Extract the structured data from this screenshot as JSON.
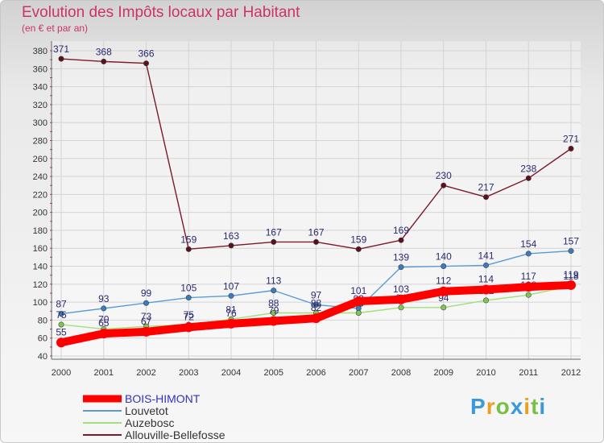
{
  "header": {
    "title": "Evolution des Impôts locaux par Habitant",
    "subtitle": "(en € et par an)"
  },
  "logo": {
    "text": "Proxiti",
    "colors": [
      "#3a9ad9",
      "#e8a020",
      "#77c043",
      "#3a9ad9",
      "#e8a020",
      "#77c043",
      "#3a9ad9"
    ]
  },
  "chart_data": {
    "type": "line",
    "title": "Evolution des Impôts locaux par Habitant",
    "subtitle": "(en € et par an)",
    "xlabel": "",
    "ylabel": "",
    "x": [
      "2000",
      "2001",
      "2002",
      "2003",
      "2004",
      "2005",
      "2006",
      "2007",
      "2008",
      "2009",
      "2010",
      "2011",
      "2012"
    ],
    "ylim": [
      40,
      380
    ],
    "yticks": [
      40,
      60,
      80,
      100,
      120,
      140,
      160,
      180,
      200,
      220,
      240,
      260,
      280,
      300,
      320,
      340,
      360,
      380
    ],
    "grid": true,
    "legend_position": "bottom-left",
    "series": [
      {
        "name": "Allouville-Bellefosse",
        "color": "#7a1a2a",
        "marker": "#5a1020",
        "text_color": "#2a2a70",
        "values": [
          371,
          368,
          366,
          159,
          163,
          167,
          167,
          159,
          169,
          230,
          217,
          238,
          271
        ],
        "labels": [
          "371",
          "368",
          "366",
          "159",
          "163",
          "167",
          "167",
          "159",
          "169",
          "230",
          "217",
          "238",
          "271"
        ]
      },
      {
        "name": "Louvetot",
        "color": "#5b9bd5",
        "marker": "#3a7cc0",
        "text_color": "#2a2a70",
        "values": [
          87,
          93,
          99,
          105,
          107,
          113,
          97,
          93,
          139,
          140,
          141,
          154,
          157
        ],
        "labels": [
          "87",
          "93",
          "99",
          "105",
          "107",
          "113",
          "97",
          "93",
          "139",
          "140",
          "141",
          "154",
          "157"
        ]
      },
      {
        "name": "Auzebosc",
        "color": "#9fe07a",
        "marker": "#7ec850",
        "text_color": "#2a2a70",
        "values": [
          75,
          70,
          73,
          75,
          81,
          88,
          88,
          88,
          94,
          94,
          102,
          108,
          118
        ],
        "labels": [
          "75",
          "70",
          "73",
          "75",
          "81",
          "88",
          "88",
          "88",
          "94",
          "94",
          "102",
          "108",
          "118"
        ]
      },
      {
        "name": "BOIS-HIMONT",
        "color": "#ff0000",
        "marker": "#ff0000",
        "text_color": "#2a2a70",
        "values": [
          55,
          65,
          67,
          72,
          76,
          79,
          82,
          101,
          103,
          112,
          114,
          117,
          119
        ],
        "labels": [
          "55",
          "65",
          "67",
          "72",
          "76",
          "79",
          "82",
          "101",
          "103",
          "112",
          "114",
          "117",
          "119"
        ]
      }
    ],
    "legend": [
      "BOIS-HIMONT",
      "Louvetot",
      "Auzebosc",
      "Allouville-Bellefosse"
    ]
  }
}
